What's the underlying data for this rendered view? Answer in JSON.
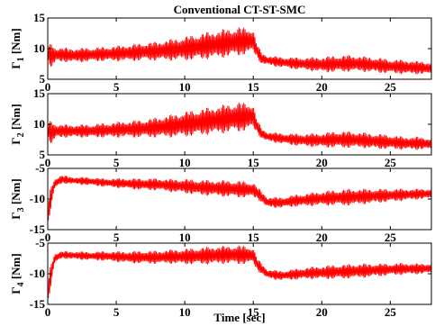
{
  "chart_data": [
    {
      "type": "line",
      "title": "Conventional CT-ST-SMC",
      "ylabel": {
        "symbol": "Γ",
        "sub": "1",
        "unit": " [Nm]"
      },
      "xlim": [
        0,
        28
      ],
      "ylim": [
        5,
        15
      ],
      "xticks": [
        "0",
        "5",
        "10",
        "15",
        "20",
        "25"
      ],
      "yticks": [
        "5",
        "10",
        "15"
      ],
      "grid": false,
      "series": [
        {
          "color": "#ff0000",
          "x": [
            0,
            0.3,
            0.6,
            1,
            2,
            3,
            4,
            5,
            6,
            7,
            8,
            9,
            10,
            11,
            12,
            13,
            14,
            15,
            15.2,
            15.6,
            16,
            17,
            18,
            19,
            20,
            21,
            22,
            23,
            24,
            25,
            26,
            27,
            28
          ],
          "y": [
            9.2,
            8.8,
            9.0,
            9.0,
            8.9,
            9.0,
            9.1,
            9.2,
            9.3,
            9.5,
            9.6,
            9.8,
            10.0,
            10.3,
            10.6,
            10.9,
            11.2,
            11.3,
            10.0,
            8.4,
            8.1,
            7.8,
            7.6,
            7.5,
            7.4,
            7.5,
            7.6,
            7.5,
            7.3,
            7.1,
            7.0,
            6.9,
            6.8
          ],
          "amp": [
            1.2,
            2.3,
            1.3,
            1.2,
            1.2,
            1.2,
            1.2,
            1.3,
            1.4,
            1.5,
            1.6,
            1.8,
            2.0,
            2.2,
            2.3,
            2.4,
            2.4,
            2.1,
            1.2,
            1.0,
            0.8,
            0.9,
            1.0,
            1.1,
            1.3,
            1.4,
            1.4,
            1.3,
            1.3,
            1.2,
            1.2,
            1.1,
            1.1
          ]
        }
      ]
    },
    {
      "type": "line",
      "ylabel": {
        "symbol": "Γ",
        "sub": "2",
        "unit": " [Nm]"
      },
      "xlim": [
        0,
        28
      ],
      "ylim": [
        5,
        15
      ],
      "xticks": [
        "0",
        "5",
        "10",
        "15",
        "20",
        "25"
      ],
      "yticks": [
        "5",
        "10",
        "15"
      ],
      "grid": false,
      "series": [
        {
          "color": "#ff0000",
          "x": [
            0,
            0.3,
            0.6,
            1,
            2,
            3,
            4,
            5,
            6,
            7,
            8,
            9,
            10,
            11,
            12,
            13,
            14,
            15,
            15.2,
            15.6,
            16,
            17,
            18,
            19,
            20,
            21,
            22,
            23,
            24,
            25,
            26,
            27,
            28
          ],
          "y": [
            9.0,
            8.6,
            8.9,
            8.9,
            8.9,
            8.9,
            9.0,
            9.1,
            9.2,
            9.3,
            9.5,
            9.7,
            10.0,
            10.3,
            10.6,
            10.9,
            11.2,
            11.3,
            10.0,
            8.5,
            8.0,
            7.7,
            7.5,
            7.4,
            7.4,
            7.5,
            7.5,
            7.4,
            7.2,
            7.1,
            6.9,
            6.9,
            6.8
          ],
          "amp": [
            1.2,
            2.2,
            1.3,
            1.1,
            1.1,
            1.1,
            1.2,
            1.3,
            1.4,
            1.5,
            1.7,
            1.9,
            2.1,
            2.2,
            2.3,
            2.4,
            2.5,
            2.2,
            1.2,
            0.9,
            0.8,
            0.9,
            1.0,
            1.1,
            1.2,
            1.4,
            1.4,
            1.3,
            1.3,
            1.2,
            1.1,
            1.1,
            1.0
          ]
        }
      ]
    },
    {
      "type": "line",
      "ylabel": {
        "symbol": "Γ",
        "sub": "3",
        "unit": " [Nm]"
      },
      "xlim": [
        0,
        28
      ],
      "ylim": [
        -15,
        -5
      ],
      "xticks": [
        "0",
        "5",
        "10",
        "15",
        "20",
        "25"
      ],
      "yticks": [
        "-15",
        "-10",
        "-5"
      ],
      "grid": false,
      "series": [
        {
          "color": "#ff0000",
          "x": [
            0,
            0.2,
            0.5,
            1,
            2,
            3,
            4,
            5,
            6,
            7,
            8,
            9,
            10,
            11,
            12,
            13,
            14,
            15,
            15.3,
            16,
            17,
            18,
            19,
            20,
            21,
            22,
            23,
            24,
            25,
            26,
            27,
            28
          ],
          "y": [
            -13.0,
            -10.0,
            -7.5,
            -6.8,
            -7.0,
            -7.1,
            -7.3,
            -7.4,
            -7.5,
            -7.6,
            -7.6,
            -7.8,
            -7.9,
            -8.1,
            -8.2,
            -8.3,
            -8.4,
            -8.5,
            -9.0,
            -10.5,
            -10.6,
            -10.3,
            -10.1,
            -9.9,
            -9.8,
            -9.7,
            -9.6,
            -9.5,
            -9.4,
            -9.3,
            -9.2,
            -9.1
          ],
          "amp": [
            1.5,
            2.0,
            1.0,
            0.7,
            0.6,
            0.7,
            0.7,
            0.8,
            0.9,
            1.0,
            1.0,
            1.1,
            1.2,
            1.3,
            1.3,
            1.4,
            1.4,
            1.3,
            1.0,
            0.9,
            0.9,
            1.0,
            1.1,
            1.2,
            1.3,
            1.4,
            1.3,
            1.2,
            1.1,
            1.0,
            0.9,
            0.9
          ]
        }
      ]
    },
    {
      "type": "line",
      "ylabel": {
        "symbol": "Γ",
        "sub": "4",
        "unit": " [Nm]"
      },
      "xlabel": "Time [sec]",
      "xlim": [
        0,
        28
      ],
      "ylim": [
        -15,
        -5
      ],
      "xticks": [
        "0",
        "5",
        "10",
        "15",
        "20",
        "25"
      ],
      "yticks": [
        "-15",
        "-10",
        "-5"
      ],
      "grid": false,
      "series": [
        {
          "color": "#ff0000",
          "x": [
            0,
            0.2,
            0.5,
            1,
            2,
            3,
            4,
            5,
            6,
            7,
            8,
            9,
            10,
            11,
            12,
            13,
            14,
            15,
            15.3,
            16,
            17,
            18,
            19,
            20,
            21,
            22,
            23,
            24,
            25,
            26,
            27,
            28
          ],
          "y": [
            -13.5,
            -10.5,
            -7.5,
            -6.9,
            -7.0,
            -7.1,
            -7.1,
            -7.2,
            -7.3,
            -7.3,
            -7.3,
            -7.2,
            -7.2,
            -7.1,
            -7.0,
            -6.9,
            -6.9,
            -7.0,
            -8.5,
            -10.0,
            -10.3,
            -10.1,
            -9.9,
            -9.8,
            -9.7,
            -9.6,
            -9.5,
            -9.4,
            -9.3,
            -9.2,
            -9.2,
            -9.1
          ],
          "amp": [
            1.5,
            2.0,
            1.0,
            0.6,
            0.7,
            0.7,
            0.8,
            0.9,
            1.0,
            1.1,
            1.1,
            1.2,
            1.3,
            1.4,
            1.5,
            1.5,
            1.6,
            1.4,
            1.0,
            0.8,
            0.8,
            0.9,
            1.0,
            1.1,
            1.2,
            1.2,
            1.2,
            1.1,
            1.0,
            1.0,
            0.9,
            0.9
          ]
        }
      ]
    }
  ]
}
